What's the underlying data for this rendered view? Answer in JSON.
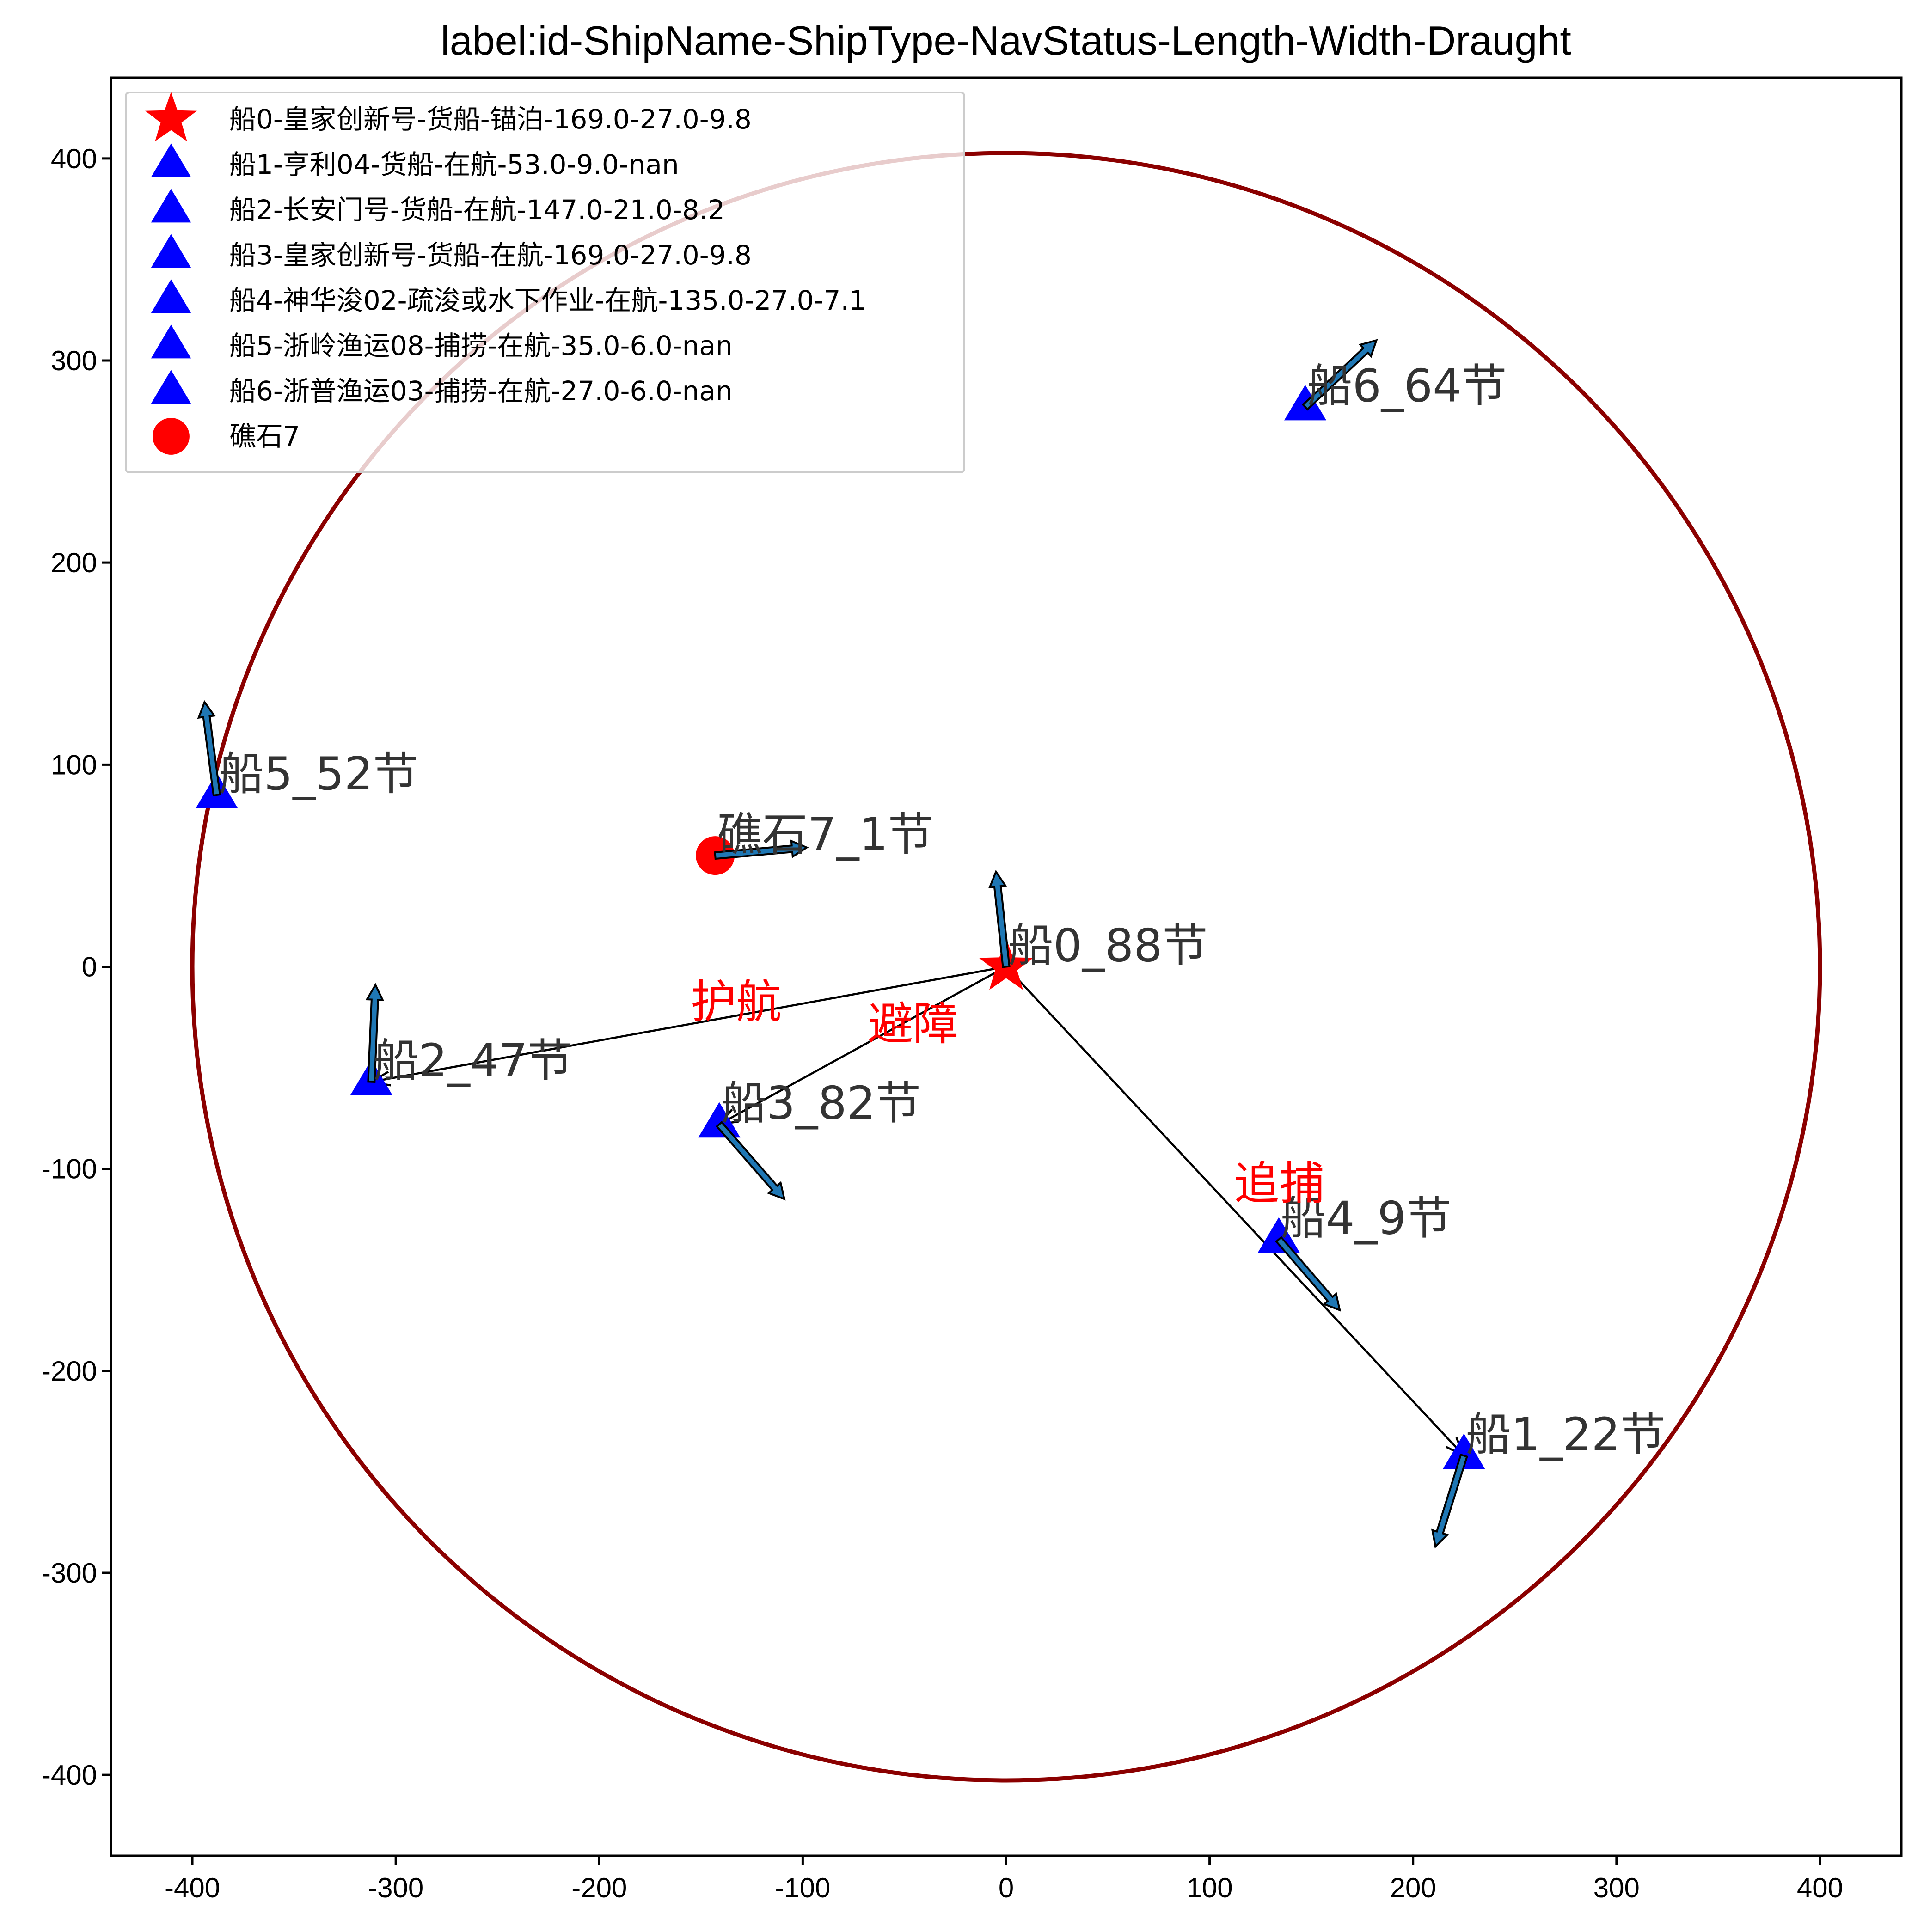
{
  "chart_data": {
    "type": "scatter",
    "title": "label:id-ShipName-ShipType-NavStatus-Length-Width-Draught",
    "xlim": [
      -440,
      440
    ],
    "ylim": [
      -440,
      440
    ],
    "x_ticks": [
      -400,
      -300,
      -200,
      -100,
      0,
      100,
      200,
      300,
      400
    ],
    "y_ticks": [
      -400,
      -300,
      -200,
      -100,
      0,
      100,
      200,
      300,
      400
    ],
    "grid": false,
    "legend_position": "top-left",
    "range_circle": {
      "center": [
        0,
        0
      ],
      "radius": 400,
      "color": "#8b0000"
    },
    "points": [
      {
        "id": "ship0",
        "x": 0,
        "y": 0,
        "marker": "star",
        "color": "#ff0000",
        "label": "船0_88节",
        "legend": "船0-皇家创新号-货船-锚泊-169.0-27.0-9.8",
        "heading_end": [
          -5,
          47
        ]
      },
      {
        "id": "ship1",
        "x": 225,
        "y": -242,
        "marker": "triangle",
        "color": "#0000ff",
        "label": "船1_22节",
        "legend": "船1-亨利04-货船-在航-53.0-9.0-nan",
        "heading_end": [
          211,
          -287
        ]
      },
      {
        "id": "ship2",
        "x": -312,
        "y": -57,
        "marker": "triangle",
        "color": "#0000ff",
        "label": "船2_47节",
        "legend": "船2-长安门号-货船-在航-147.0-21.0-8.2",
        "heading_end": [
          -310,
          -9
        ]
      },
      {
        "id": "ship3",
        "x": -141,
        "y": -78,
        "marker": "triangle",
        "color": "#0000ff",
        "label": "船3_82节",
        "legend": "船3-皇家创新号-货船-在航-169.0-27.0-9.8",
        "heading_end": [
          -109,
          -115
        ]
      },
      {
        "id": "ship4",
        "x": 134,
        "y": -135,
        "marker": "triangle",
        "color": "#0000ff",
        "label": "船4_9节",
        "legend": "船4-神华浚02-疏浚或水下作业-在航-135.0-27.0-7.1",
        "heading_end": [
          164,
          -170
        ]
      },
      {
        "id": "ship5",
        "x": -388,
        "y": 85,
        "marker": "triangle",
        "color": "#0000ff",
        "label": "船5_52节",
        "legend": "船5-浙岭渔运08-捕捞-在航-35.0-6.0-nan",
        "heading_end": [
          -394,
          131
        ]
      },
      {
        "id": "ship6",
        "x": 147,
        "y": 277,
        "marker": "triangle",
        "color": "#0000ff",
        "label": "船6_64节",
        "legend": "船6-浙普渔运03-捕捞-在航-27.0-6.0-nan",
        "heading_end": [
          182,
          310
        ]
      },
      {
        "id": "reef7",
        "x": -143,
        "y": 55,
        "marker": "circle",
        "color": "#ff0000",
        "label": "礁石7_1节",
        "legend": "礁石7",
        "heading_end": [
          -98,
          59
        ]
      }
    ],
    "relations": [
      {
        "from": "ship0",
        "to": "ship2",
        "label": "护航",
        "label_pos": [
          -155,
          -25
        ]
      },
      {
        "from": "ship0",
        "to": "ship3",
        "label": "避障",
        "label_pos": [
          -68,
          -36
        ]
      },
      {
        "from": "ship0",
        "to": "ship1",
        "label": "追捕",
        "label_pos": [
          112,
          -115
        ]
      }
    ]
  }
}
